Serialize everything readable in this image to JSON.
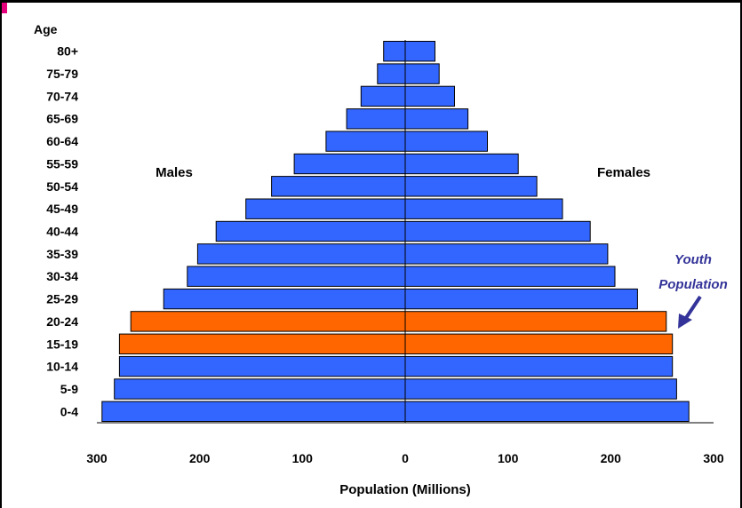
{
  "chart_data": {
    "type": "bar",
    "orientation": "horizontal",
    "layout": "population-pyramid",
    "title": "",
    "xlabel": "Population (Millions)",
    "ylabel": "Age",
    "xlim": [
      -300,
      300
    ],
    "x_tick_values": [
      -300,
      -200,
      -100,
      0,
      100,
      200,
      300
    ],
    "x_tick_labels": [
      "300",
      "200",
      "100",
      "0",
      "100",
      "200",
      "300"
    ],
    "categories": [
      "80+",
      "75-79",
      "70-74",
      "65-69",
      "60-64",
      "55-59",
      "50-54",
      "45-49",
      "40-44",
      "35-39",
      "30-34",
      "25-29",
      "20-24",
      "15-19",
      "10-14",
      "5-9",
      "0-4"
    ],
    "series": [
      {
        "name": "Males",
        "values": [
          21,
          27,
          43,
          57,
          77,
          108,
          130,
          155,
          184,
          202,
          212,
          235,
          267,
          278,
          278,
          283,
          295
        ]
      },
      {
        "name": "Females",
        "values": [
          29,
          33,
          48,
          61,
          80,
          110,
          128,
          153,
          180,
          197,
          204,
          226,
          254,
          260,
          260,
          264,
          276
        ]
      }
    ],
    "highlight_categories": [
      "20-24",
      "15-19"
    ],
    "annotation": {
      "lines": [
        "Youth",
        "Population"
      ],
      "target_category": "20-24"
    },
    "colors": {
      "bar": "#3366ff",
      "highlight": "#ff6600",
      "annotation": "#333399",
      "accent": "#e4007c"
    },
    "grid": false,
    "legend": "none"
  }
}
